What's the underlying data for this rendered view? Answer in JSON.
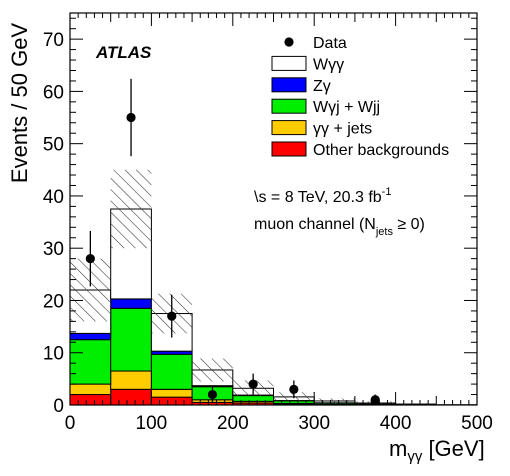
{
  "chart_data": {
    "type": "bar",
    "stacked": true,
    "bin_edges": [
      0,
      50,
      100,
      150,
      200,
      250,
      300,
      350,
      400,
      450,
      500
    ],
    "series": [
      {
        "name": "Other backgrounds",
        "color": "#ff0000",
        "values": [
          2.0,
          3.0,
          1.5,
          0.5,
          0.4,
          0.2,
          0.1,
          0.05,
          0.02,
          0.0
        ]
      },
      {
        "name": "γγ + jets",
        "color": "#ffcc00",
        "values": [
          2.0,
          3.5,
          1.5,
          0.5,
          0.3,
          0.1,
          0.05,
          0.02,
          0.01,
          0.0
        ]
      },
      {
        "name": "Wγj + Wjj",
        "color": "#00ee00",
        "values": [
          8.5,
          12.0,
          6.7,
          2.5,
          1.1,
          0.5,
          0.25,
          0.1,
          0.05,
          0.0
        ]
      },
      {
        "name": "Zγ",
        "color": "#0000ff",
        "values": [
          1.2,
          1.8,
          0.6,
          0.2,
          0.1,
          0.05,
          0.02,
          0.01,
          0.0,
          0.0
        ]
      },
      {
        "name": "Wγγ",
        "color": "#ffffff",
        "values": [
          8.3,
          17.2,
          7.2,
          3.0,
          1.3,
          0.7,
          0.35,
          0.2,
          0.1,
          0.05
        ]
      }
    ],
    "uncertainty": [
      6.0,
      7.5,
      3.8,
      2.2,
      1.5,
      0.9,
      0.5,
      0.3,
      0.15,
      0.05
    ],
    "data_points": {
      "name": "Data",
      "x": [
        25,
        75,
        125,
        175,
        225,
        275,
        375
      ],
      "y": [
        28,
        55,
        17,
        2,
        4,
        3,
        1
      ],
      "err": [
        5.3,
        7.4,
        4.1,
        1.4,
        2.0,
        1.7,
        1.0
      ]
    },
    "xlabel_main": "m",
    "xlabel_sub": "γγ",
    "xlabel_unit": " [GeV]",
    "ylabel": "Events / 50 GeV",
    "xlim": [
      0,
      500
    ],
    "ylim": [
      0,
      75
    ],
    "xticks": [
      0,
      100,
      200,
      300,
      400,
      500
    ],
    "yticks": [
      0,
      10,
      20,
      30,
      40,
      50,
      60,
      70
    ],
    "legend_position": "top-right",
    "legend": [
      "Data",
      "Wγγ",
      "Zγ",
      "Wγj + Wjj",
      "γγ + jets",
      "Other backgrounds"
    ]
  },
  "annotations": {
    "experiment": "ATLAS",
    "energy_sqrt": "\\s",
    "energy_main": " = 8 TeV, 20.3 fb",
    "energy_sup": "-1",
    "channel_pre": "muon channel (N",
    "channel_sub": "jets",
    "channel_post": " ≥ 0)"
  }
}
